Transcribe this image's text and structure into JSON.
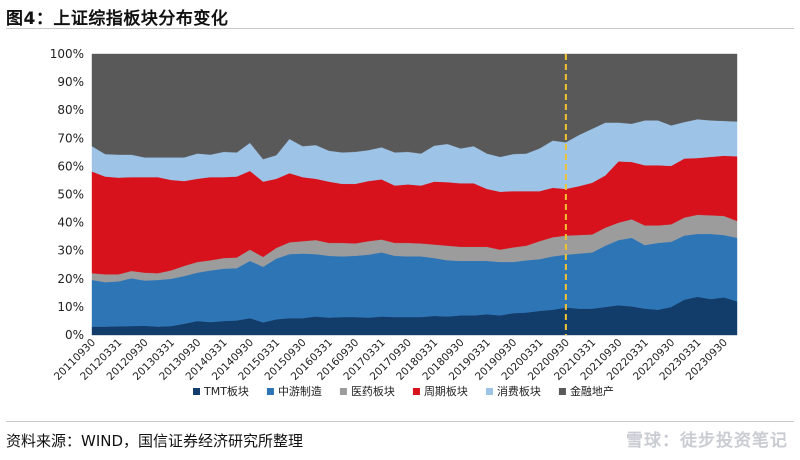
{
  "figure": {
    "title": "图4：上证综指板块分布变化",
    "source": "资料来源：WIND，国信证券经济研究所整理",
    "watermark": "雪球：徒步投资笔记"
  },
  "chart_data": {
    "type": "area",
    "stacked": true,
    "title": "",
    "xlabel": "",
    "ylabel": "",
    "ylim": [
      0,
      100
    ],
    "y_ticks": [
      "0%",
      "10%",
      "20%",
      "30%",
      "40%",
      "50%",
      "60%",
      "70%",
      "80%",
      "90%",
      "100%"
    ],
    "x_tick_labels": [
      "20110930",
      "20120331",
      "20120930",
      "20130331",
      "20130930",
      "20140331",
      "20140930",
      "20150331",
      "20150930",
      "20160331",
      "20160930",
      "20170331",
      "20170930",
      "20180331",
      "20180930",
      "20190331",
      "20190930",
      "20200331",
      "20200930",
      "20210331",
      "20210930",
      "20220331",
      "20220930",
      "20230331",
      "20230930"
    ],
    "x": [
      "20110930",
      "20111231",
      "20120331",
      "20120630",
      "20120930",
      "20121231",
      "20130331",
      "20130630",
      "20130930",
      "20131231",
      "20140331",
      "20140630",
      "20140930",
      "20141231",
      "20150331",
      "20150630",
      "20150930",
      "20151231",
      "20160331",
      "20160630",
      "20160930",
      "20161231",
      "20170331",
      "20170630",
      "20170930",
      "20171231",
      "20180331",
      "20180630",
      "20180930",
      "20181231",
      "20190331",
      "20190630",
      "20190930",
      "20191231",
      "20200331",
      "20200630",
      "20200930",
      "20201231",
      "20210331",
      "20210630",
      "20210930",
      "20211231",
      "20220331",
      "20220630",
      "20220930",
      "20221231",
      "20230331",
      "20230630",
      "20230930",
      "20231231"
    ],
    "marker_line": {
      "x": "20200930",
      "color": "#f2c230"
    },
    "legend_position": "bottom",
    "series": [
      {
        "name": "TMT板块",
        "color": "#123d6b",
        "values": [
          3.0,
          3.0,
          3.1,
          3.2,
          3.3,
          3.0,
          3.2,
          4.0,
          5.0,
          4.6,
          5.0,
          5.2,
          6.0,
          4.5,
          5.6,
          6.0,
          6.0,
          6.6,
          6.2,
          6.4,
          6.4,
          6.2,
          6.6,
          6.4,
          6.4,
          6.4,
          6.8,
          6.6,
          7.0,
          7.0,
          7.4,
          7.0,
          7.8,
          8.0,
          8.6,
          9.0,
          9.8,
          9.4,
          9.4,
          10.0,
          10.6,
          10.2,
          9.4,
          9.0,
          10.0,
          12.6,
          13.6,
          12.8,
          13.4,
          12.0
        ]
      },
      {
        "name": "中游制造",
        "color": "#2e75b6",
        "values": [
          16.6,
          15.8,
          16.0,
          17.0,
          16.1,
          16.6,
          16.8,
          17.0,
          17.2,
          18.4,
          18.6,
          18.6,
          20.4,
          19.8,
          21.6,
          22.8,
          23.0,
          22.2,
          22.0,
          21.6,
          21.8,
          22.4,
          22.8,
          21.8,
          21.6,
          21.6,
          20.6,
          20.0,
          19.4,
          19.4,
          19.0,
          19.0,
          18.2,
          18.6,
          18.4,
          19.0,
          18.8,
          19.6,
          20.0,
          21.8,
          23.2,
          24.4,
          22.6,
          23.8,
          23.2,
          22.8,
          22.4,
          23.2,
          22.2,
          22.6
        ]
      },
      {
        "name": "医药板块",
        "color": "#9c9c9c",
        "values": [
          2.4,
          2.8,
          2.5,
          2.6,
          2.8,
          2.4,
          3.0,
          3.6,
          3.8,
          3.6,
          3.8,
          3.8,
          4.0,
          3.5,
          3.8,
          4.2,
          4.4,
          5.0,
          4.6,
          4.8,
          4.4,
          4.8,
          4.6,
          4.6,
          4.8,
          4.6,
          4.8,
          5.2,
          5.0,
          5.0,
          5.0,
          4.4,
          5.2,
          5.2,
          6.4,
          6.8,
          6.8,
          6.6,
          6.4,
          6.4,
          6.2,
          6.6,
          7.0,
          6.2,
          6.2,
          6.4,
          6.8,
          6.6,
          6.8,
          6.0
        ]
      },
      {
        "name": "周期板块",
        "color": "#d7121c",
        "values": [
          36.2,
          34.8,
          34.4,
          33.4,
          34.0,
          34.2,
          32.2,
          30.2,
          29.6,
          29.6,
          28.8,
          28.8,
          28.0,
          26.8,
          24.6,
          24.6,
          22.8,
          21.8,
          21.8,
          21.0,
          21.2,
          21.4,
          21.4,
          20.4,
          20.8,
          20.6,
          22.4,
          22.6,
          22.6,
          22.6,
          20.6,
          20.6,
          20.0,
          19.4,
          17.8,
          17.6,
          16.6,
          17.4,
          18.4,
          18.6,
          21.8,
          20.4,
          21.4,
          21.4,
          20.8,
          21.0,
          20.2,
          20.8,
          21.4,
          23.0
        ]
      },
      {
        "name": "消费板块",
        "color": "#9dc3e6",
        "values": [
          9.0,
          8.0,
          8.2,
          8.0,
          7.0,
          7.0,
          8.0,
          8.4,
          9.0,
          8.0,
          9.0,
          8.6,
          10.0,
          8.0,
          8.4,
          12.2,
          11.0,
          12.0,
          11.0,
          11.2,
          11.4,
          11.0,
          11.4,
          11.8,
          11.6,
          11.4,
          12.8,
          13.6,
          12.4,
          13.2,
          12.6,
          12.4,
          13.2,
          13.4,
          15.2,
          16.8,
          16.6,
          18.2,
          19.2,
          18.8,
          13.8,
          13.6,
          16.0,
          16.0,
          14.4,
          13.0,
          13.8,
          13.0,
          12.4,
          12.4
        ]
      },
      {
        "name": "金融地产",
        "color": "#595959",
        "values": [
          32.8,
          35.6,
          35.8,
          35.8,
          36.8,
          36.8,
          36.8,
          36.8,
          35.4,
          35.8,
          34.8,
          35.0,
          31.6,
          37.4,
          36.0,
          30.2,
          32.8,
          32.4,
          34.4,
          35.0,
          34.8,
          34.2,
          33.2,
          35.0,
          34.8,
          35.4,
          32.6,
          32.0,
          33.6,
          32.8,
          35.4,
          36.6,
          35.6,
          35.4,
          33.6,
          30.8,
          31.4,
          28.8,
          26.6,
          24.4,
          24.4,
          24.8,
          23.6,
          23.6,
          25.4,
          24.2,
          23.2,
          23.6,
          23.8,
          24.0
        ]
      }
    ]
  }
}
